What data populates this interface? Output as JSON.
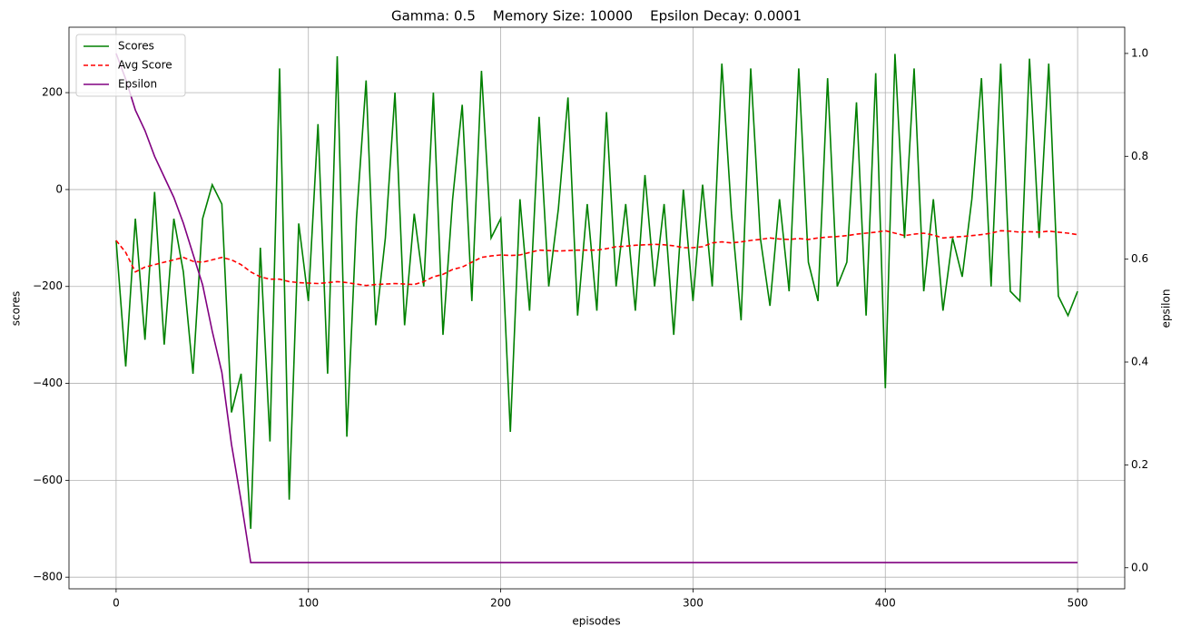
{
  "chart_data": {
    "type": "line",
    "title": "Gamma: 0.5    Memory Size: 10000    Epsilon Decay: 0.0001",
    "xlabel": "episodes",
    "ylabel": "scores",
    "y2label": "epsilon",
    "x": [
      0,
      5,
      10,
      15,
      20,
      25,
      30,
      35,
      40,
      45,
      50,
      55,
      60,
      65,
      70,
      75,
      80,
      85,
      90,
      95,
      100,
      105,
      110,
      115,
      120,
      125,
      130,
      135,
      140,
      145,
      150,
      155,
      160,
      165,
      170,
      175,
      180,
      185,
      190,
      195,
      200,
      205,
      210,
      215,
      220,
      225,
      230,
      235,
      240,
      245,
      250,
      255,
      260,
      265,
      270,
      275,
      280,
      285,
      290,
      295,
      300,
      305,
      310,
      315,
      320,
      325,
      330,
      335,
      340,
      345,
      350,
      355,
      360,
      365,
      370,
      375,
      380,
      385,
      390,
      395,
      400,
      405,
      410,
      415,
      420,
      425,
      430,
      435,
      440,
      445,
      450,
      455,
      460,
      465,
      470,
      475,
      480,
      485,
      490,
      495,
      500
    ],
    "series": [
      {
        "name": "Scores",
        "color": "#008000",
        "dash": false,
        "values": [
          -105,
          -365,
          -60,
          -310,
          -5,
          -320,
          -60,
          -170,
          -380,
          -60,
          10,
          -30,
          -460,
          -380,
          -700,
          -120,
          -520,
          250,
          -640,
          -70,
          -230,
          135,
          -380,
          275,
          -510,
          -60,
          225,
          -280,
          -100,
          200,
          -280,
          -50,
          -200,
          200,
          -300,
          -20,
          175,
          -230,
          245,
          -100,
          -60,
          -500,
          -20,
          -250,
          150,
          -200,
          -40,
          190,
          -260,
          -30,
          -250,
          160,
          -200,
          -30,
          -250,
          30,
          -200,
          -30,
          -300,
          0,
          -230,
          10,
          -200,
          260,
          -50,
          -270,
          250,
          -100,
          -240,
          -20,
          -210,
          250,
          -150,
          -230,
          230,
          -200,
          -150,
          180,
          -260,
          240,
          -410,
          280,
          -100,
          250,
          -210,
          -20,
          -250,
          -100,
          -180,
          -20,
          230,
          -200,
          260,
          -210,
          -230,
          270,
          -100,
          260,
          -220,
          -260,
          -210
        ]
      },
      {
        "name": "Avg Score",
        "color": "#ff0000",
        "dash": true,
        "values": [
          -105,
          -130,
          -170,
          -160,
          -155,
          -150,
          -145,
          -140,
          -148,
          -150,
          -145,
          -140,
          -145,
          -155,
          -170,
          -180,
          -185,
          -185,
          -190,
          -192,
          -193,
          -194,
          -192,
          -190,
          -192,
          -195,
          -198,
          -196,
          -195,
          -194,
          -195,
          -196,
          -190,
          -180,
          -175,
          -165,
          -160,
          -150,
          -140,
          -137,
          -135,
          -136,
          -135,
          -130,
          -125,
          -126,
          -127,
          -126,
          -125,
          -125,
          -125,
          -122,
          -118,
          -117,
          -115,
          -114,
          -113,
          -114,
          -116,
          -120,
          -120,
          -118,
          -110,
          -108,
          -110,
          -108,
          -105,
          -103,
          -100,
          -102,
          -103,
          -101,
          -103,
          -100,
          -98,
          -97,
          -95,
          -92,
          -90,
          -88,
          -85,
          -90,
          -95,
          -92,
          -90,
          -94,
          -100,
          -98,
          -97,
          -95,
          -93,
          -90,
          -85,
          -86,
          -88,
          -87,
          -88,
          -86,
          -88,
          -90,
          -93
        ]
      },
      {
        "name": "Epsilon",
        "color": "#800080",
        "dash": false,
        "axis": "y2",
        "values": [
          1.0,
          0.95,
          0.89,
          0.85,
          0.8,
          0.76,
          0.72,
          0.67,
          0.61,
          0.55,
          0.46,
          0.38,
          0.24,
          0.13,
          0.01,
          0.01,
          0.01,
          0.01,
          0.01,
          0.01,
          0.01,
          0.01,
          0.01,
          0.01,
          0.01,
          0.01,
          0.01,
          0.01,
          0.01,
          0.01,
          0.01,
          0.01,
          0.01,
          0.01,
          0.01,
          0.01,
          0.01,
          0.01,
          0.01,
          0.01,
          0.01,
          0.01,
          0.01,
          0.01,
          0.01,
          0.01,
          0.01,
          0.01,
          0.01,
          0.01,
          0.01,
          0.01,
          0.01,
          0.01,
          0.01,
          0.01,
          0.01,
          0.01,
          0.01,
          0.01,
          0.01,
          0.01,
          0.01,
          0.01,
          0.01,
          0.01,
          0.01,
          0.01,
          0.01,
          0.01,
          0.01,
          0.01,
          0.01,
          0.01,
          0.01,
          0.01,
          0.01,
          0.01,
          0.01,
          0.01,
          0.01,
          0.01,
          0.01,
          0.01,
          0.01,
          0.01,
          0.01,
          0.01,
          0.01,
          0.01,
          0.01,
          0.01,
          0.01,
          0.01,
          0.01,
          0.01,
          0.01,
          0.01,
          0.01,
          0.01,
          0.01
        ]
      }
    ],
    "xlim": [
      -24.5,
      524.5
    ],
    "xticks": [
      0,
      100,
      200,
      300,
      400,
      500
    ],
    "ylim": [
      -824,
      335
    ],
    "yticks": [
      {
        "value": -800,
        "label": "−800"
      },
      {
        "value": -600,
        "label": "−600"
      },
      {
        "value": -400,
        "label": "−400"
      },
      {
        "value": -200,
        "label": "−200"
      },
      0,
      200
    ],
    "y2lim": [
      -0.041,
      1.051
    ],
    "y2ticks": [
      {
        "value": 0,
        "label": "0.0"
      },
      0.2,
      0.4,
      0.6,
      0.8,
      {
        "value": 1,
        "label": "1.0"
      }
    ],
    "grid": true,
    "legend": "upper left"
  }
}
